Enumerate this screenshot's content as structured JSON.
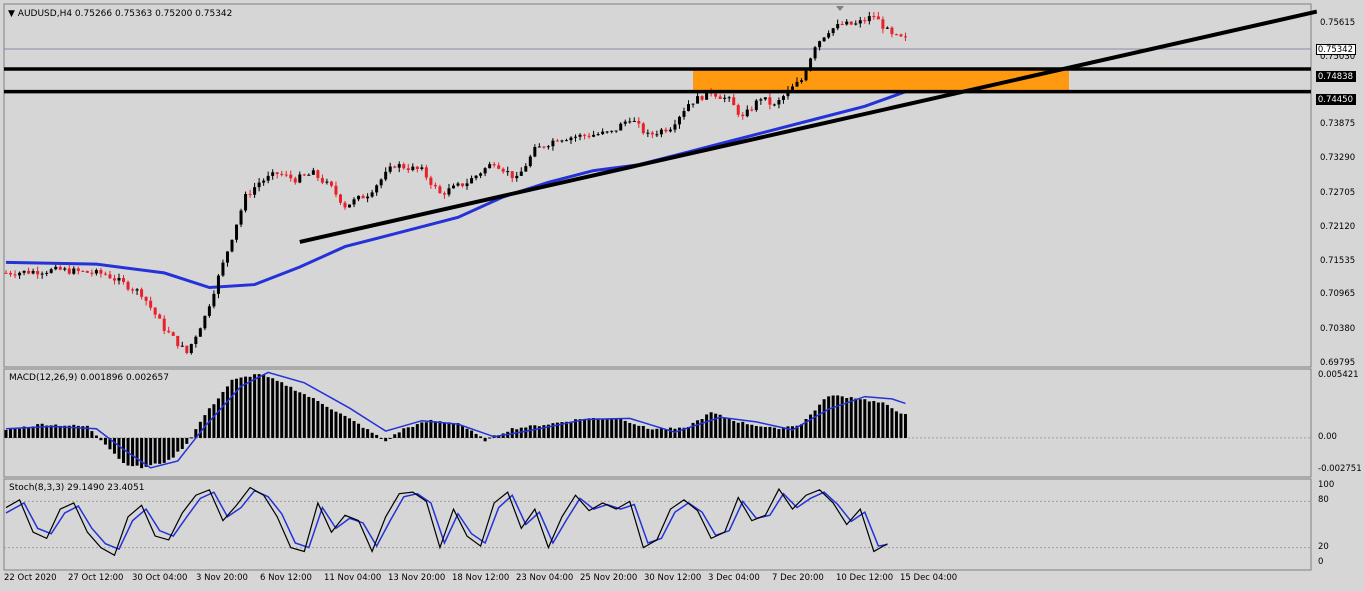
{
  "window": {
    "symbol_line": "AUDUSD,H4  0.75266 0.75363 0.75200 0.75342",
    "menu_icon": "triangle-down-icon"
  },
  "indicators": {
    "macd_label": "MACD(12,26,9) 0.001896 0.002657",
    "stoch_label": "Stoch(8,3,3) 29.1490 23.4051"
  },
  "price_axis": {
    "ticks": [
      "0.75615",
      "0.75030",
      "0.73875",
      "0.73290",
      "0.72705",
      "0.72120",
      "0.71535",
      "0.70965",
      "0.70380",
      "0.69795"
    ],
    "current_price_tag": "0.75342",
    "level_tags": [
      "0.74838",
      "0.74450"
    ]
  },
  "macd_axis": {
    "ticks": [
      "0.005421",
      "0.00",
      "-0.002751"
    ]
  },
  "stoch_axis": {
    "ticks": [
      "100",
      "80",
      "20",
      "0"
    ]
  },
  "time_axis": {
    "ticks": [
      "22 Oct 2020",
      "27 Oct 12:00",
      "30 Oct 04:00",
      "3 Nov 20:00",
      "6 Nov 12:00",
      "11 Nov 04:00",
      "13 Nov 20:00",
      "18 Nov 12:00",
      "23 Nov 04:00",
      "25 Nov 20:00",
      "30 Nov 12:00",
      "3 Dec 04:00",
      "7 Dec 20:00",
      "10 Dec 12:00",
      "15 Dec 04:00"
    ]
  },
  "colors": {
    "background": "#d6d6d6",
    "bull_candle": "#000000",
    "bear_candle": "#e8202a",
    "moving_average": "#2432d8",
    "resistance_zone": "#ff9a10",
    "signal_line": "#2432d8"
  },
  "chart_data": {
    "type": "candlestick",
    "symbol": "AUDUSD",
    "timeframe": "H4",
    "ohlc_last": {
      "open": 0.75266,
      "high": 0.75363,
      "low": 0.752,
      "close": 0.75342
    },
    "ylim": [
      0.6974,
      0.7595
    ],
    "price_path": [
      [
        0,
        0.7135
      ],
      [
        12,
        0.714
      ],
      [
        22,
        0.7133
      ],
      [
        30,
        0.71
      ],
      [
        35,
        0.704
      ],
      [
        40,
        0.6998
      ],
      [
        44,
        0.706
      ],
      [
        48,
        0.715
      ],
      [
        51,
        0.722
      ],
      [
        53,
        0.7265
      ],
      [
        56,
        0.729
      ],
      [
        60,
        0.7305
      ],
      [
        64,
        0.7295
      ],
      [
        68,
        0.7305
      ],
      [
        72,
        0.728
      ],
      [
        75,
        0.725
      ],
      [
        80,
        0.727
      ],
      [
        86,
        0.732
      ],
      [
        92,
        0.731
      ],
      [
        96,
        0.727
      ],
      [
        102,
        0.729
      ],
      [
        108,
        0.7325
      ],
      [
        113,
        0.7295
      ],
      [
        117,
        0.7345
      ],
      [
        122,
        0.7365
      ],
      [
        128,
        0.737
      ],
      [
        134,
        0.7375
      ],
      [
        138,
        0.74
      ],
      [
        142,
        0.737
      ],
      [
        147,
        0.7385
      ],
      [
        151,
        0.7425
      ],
      [
        156,
        0.7445
      ],
      [
        160,
        0.743
      ],
      [
        163,
        0.74
      ],
      [
        167,
        0.7435
      ],
      [
        170,
        0.742
      ],
      [
        173,
        0.7445
      ],
      [
        176,
        0.7465
      ],
      [
        179,
        0.7525
      ],
      [
        182,
        0.755
      ],
      [
        185,
        0.756
      ],
      [
        188,
        0.756
      ],
      [
        192,
        0.7575
      ],
      [
        196,
        0.754
      ],
      [
        199,
        0.7534
      ]
    ],
    "moving_average": [
      [
        0,
        0.7153
      ],
      [
        20,
        0.715
      ],
      [
        35,
        0.7135
      ],
      [
        45,
        0.711
      ],
      [
        55,
        0.7115
      ],
      [
        65,
        0.7145
      ],
      [
        75,
        0.718
      ],
      [
        85,
        0.72
      ],
      [
        100,
        0.723
      ],
      [
        110,
        0.7265
      ],
      [
        120,
        0.729
      ],
      [
        130,
        0.731
      ],
      [
        140,
        0.732
      ],
      [
        150,
        0.734
      ],
      [
        160,
        0.736
      ],
      [
        170,
        0.738
      ],
      [
        180,
        0.74
      ],
      [
        190,
        0.742
      ],
      [
        199,
        0.7445
      ]
    ],
    "support_levels": [
      0.74838,
      0.7445
    ],
    "resistance_zone": [
      0.7445,
      0.7483
    ],
    "trendlines": [
      {
        "from": [
          65,
          0.7188
        ],
        "to": [
          290,
          0.7582
        ],
        "color": "#000000"
      }
    ],
    "macd": {
      "ylim": [
        -0.0034,
        0.006
      ],
      "histogram_path": [
        [
          0,
          0.0007
        ],
        [
          8,
          0.0012
        ],
        [
          18,
          0.001
        ],
        [
          22,
          -0.0005
        ],
        [
          26,
          -0.0022
        ],
        [
          30,
          -0.0026
        ],
        [
          36,
          -0.002
        ],
        [
          40,
          -0.0005
        ],
        [
          44,
          0.002
        ],
        [
          50,
          0.005
        ],
        [
          56,
          0.0056
        ],
        [
          62,
          0.0046
        ],
        [
          70,
          0.003
        ],
        [
          78,
          0.0012
        ],
        [
          84,
          -0.0003
        ],
        [
          88,
          0.0008
        ],
        [
          94,
          0.0015
        ],
        [
          100,
          0.0013
        ],
        [
          106,
          -0.0002
        ],
        [
          112,
          0.0008
        ],
        [
          120,
          0.0012
        ],
        [
          128,
          0.0017
        ],
        [
          136,
          0.0017
        ],
        [
          142,
          0.0008
        ],
        [
          150,
          0.0008
        ],
        [
          156,
          0.0022
        ],
        [
          162,
          0.0014
        ],
        [
          170,
          0.0008
        ],
        [
          176,
          0.0012
        ],
        [
          182,
          0.0037
        ],
        [
          188,
          0.0035
        ],
        [
          194,
          0.003
        ],
        [
          199,
          0.002
        ]
      ],
      "signal_path": [
        [
          0,
          0.0008
        ],
        [
          10,
          0.001
        ],
        [
          20,
          0.0008
        ],
        [
          26,
          -0.001
        ],
        [
          32,
          -0.0026
        ],
        [
          38,
          -0.002
        ],
        [
          44,
          0.001
        ],
        [
          52,
          0.0045
        ],
        [
          58,
          0.0057
        ],
        [
          66,
          0.0048
        ],
        [
          76,
          0.0026
        ],
        [
          84,
          0.0006
        ],
        [
          92,
          0.0015
        ],
        [
          100,
          0.0012
        ],
        [
          108,
          0.0001
        ],
        [
          118,
          0.0008
        ],
        [
          128,
          0.0016
        ],
        [
          138,
          0.0017
        ],
        [
          148,
          0.0005
        ],
        [
          158,
          0.0018
        ],
        [
          166,
          0.0014
        ],
        [
          174,
          0.0007
        ],
        [
          182,
          0.0025
        ],
        [
          190,
          0.0036
        ],
        [
          196,
          0.0034
        ],
        [
          199,
          0.003
        ]
      ]
    },
    "stochastic": {
      "ylim": [
        0,
        100
      ],
      "levels": [
        80,
        20
      ],
      "main_path": [
        [
          0,
          72
        ],
        [
          3,
          82
        ],
        [
          6,
          40
        ],
        [
          9,
          32
        ],
        [
          12,
          70
        ],
        [
          15,
          78
        ],
        [
          18,
          40
        ],
        [
          21,
          20
        ],
        [
          24,
          10
        ],
        [
          27,
          60
        ],
        [
          30,
          75
        ],
        [
          33,
          35
        ],
        [
          36,
          30
        ],
        [
          39,
          65
        ],
        [
          42,
          88
        ],
        [
          45,
          95
        ],
        [
          48,
          55
        ],
        [
          51,
          75
        ],
        [
          54,
          98
        ],
        [
          57,
          88
        ],
        [
          60,
          60
        ],
        [
          63,
          20
        ],
        [
          66,
          15
        ],
        [
          69,
          78
        ],
        [
          72,
          40
        ],
        [
          75,
          62
        ],
        [
          78,
          55
        ],
        [
          81,
          15
        ],
        [
          84,
          60
        ],
        [
          87,
          90
        ],
        [
          90,
          92
        ],
        [
          93,
          80
        ],
        [
          96,
          20
        ],
        [
          99,
          70
        ],
        [
          102,
          35
        ],
        [
          105,
          22
        ],
        [
          108,
          78
        ],
        [
          111,
          92
        ],
        [
          114,
          45
        ],
        [
          117,
          70
        ],
        [
          120,
          20
        ],
        [
          123,
          60
        ],
        [
          126,
          88
        ],
        [
          129,
          68
        ],
        [
          132,
          78
        ],
        [
          135,
          70
        ],
        [
          138,
          80
        ],
        [
          141,
          20
        ],
        [
          144,
          30
        ],
        [
          147,
          70
        ],
        [
          150,
          82
        ],
        [
          153,
          68
        ],
        [
          156,
          32
        ],
        [
          159,
          40
        ],
        [
          162,
          85
        ],
        [
          165,
          55
        ],
        [
          168,
          62
        ],
        [
          171,
          96
        ],
        [
          174,
          70
        ],
        [
          177,
          88
        ],
        [
          180,
          95
        ],
        [
          183,
          78
        ],
        [
          186,
          50
        ],
        [
          189,
          70
        ],
        [
          192,
          15
        ],
        [
          195,
          25
        ]
      ],
      "signal_path": [
        [
          0,
          65
        ],
        [
          4,
          78
        ],
        [
          7,
          45
        ],
        [
          10,
          38
        ],
        [
          13,
          65
        ],
        [
          16,
          74
        ],
        [
          19,
          45
        ],
        [
          22,
          25
        ],
        [
          25,
          18
        ],
        [
          28,
          55
        ],
        [
          31,
          70
        ],
        [
          34,
          42
        ],
        [
          37,
          35
        ],
        [
          40,
          60
        ],
        [
          43,
          84
        ],
        [
          46,
          92
        ],
        [
          49,
          60
        ],
        [
          52,
          72
        ],
        [
          55,
          94
        ],
        [
          58,
          86
        ],
        [
          61,
          64
        ],
        [
          64,
          26
        ],
        [
          67,
          20
        ],
        [
          70,
          72
        ],
        [
          73,
          45
        ],
        [
          76,
          58
        ],
        [
          79,
          52
        ],
        [
          82,
          22
        ],
        [
          85,
          55
        ],
        [
          88,
          86
        ],
        [
          91,
          90
        ],
        [
          94,
          78
        ],
        [
          97,
          26
        ],
        [
          100,
          64
        ],
        [
          103,
          38
        ],
        [
          106,
          26
        ],
        [
          109,
          72
        ],
        [
          112,
          88
        ],
        [
          115,
          50
        ],
        [
          118,
          66
        ],
        [
          121,
          26
        ],
        [
          124,
          56
        ],
        [
          127,
          84
        ],
        [
          130,
          70
        ],
        [
          133,
          76
        ],
        [
          136,
          70
        ],
        [
          139,
          76
        ],
        [
          142,
          26
        ],
        [
          145,
          32
        ],
        [
          148,
          66
        ],
        [
          151,
          78
        ],
        [
          154,
          66
        ],
        [
          157,
          36
        ],
        [
          160,
          42
        ],
        [
          163,
          80
        ],
        [
          166,
          58
        ],
        [
          169,
          62
        ],
        [
          172,
          90
        ],
        [
          175,
          72
        ],
        [
          178,
          84
        ],
        [
          181,
          92
        ],
        [
          184,
          76
        ],
        [
          187,
          54
        ],
        [
          190,
          66
        ],
        [
          193,
          22
        ],
        [
          195,
          24
        ]
      ]
    }
  }
}
